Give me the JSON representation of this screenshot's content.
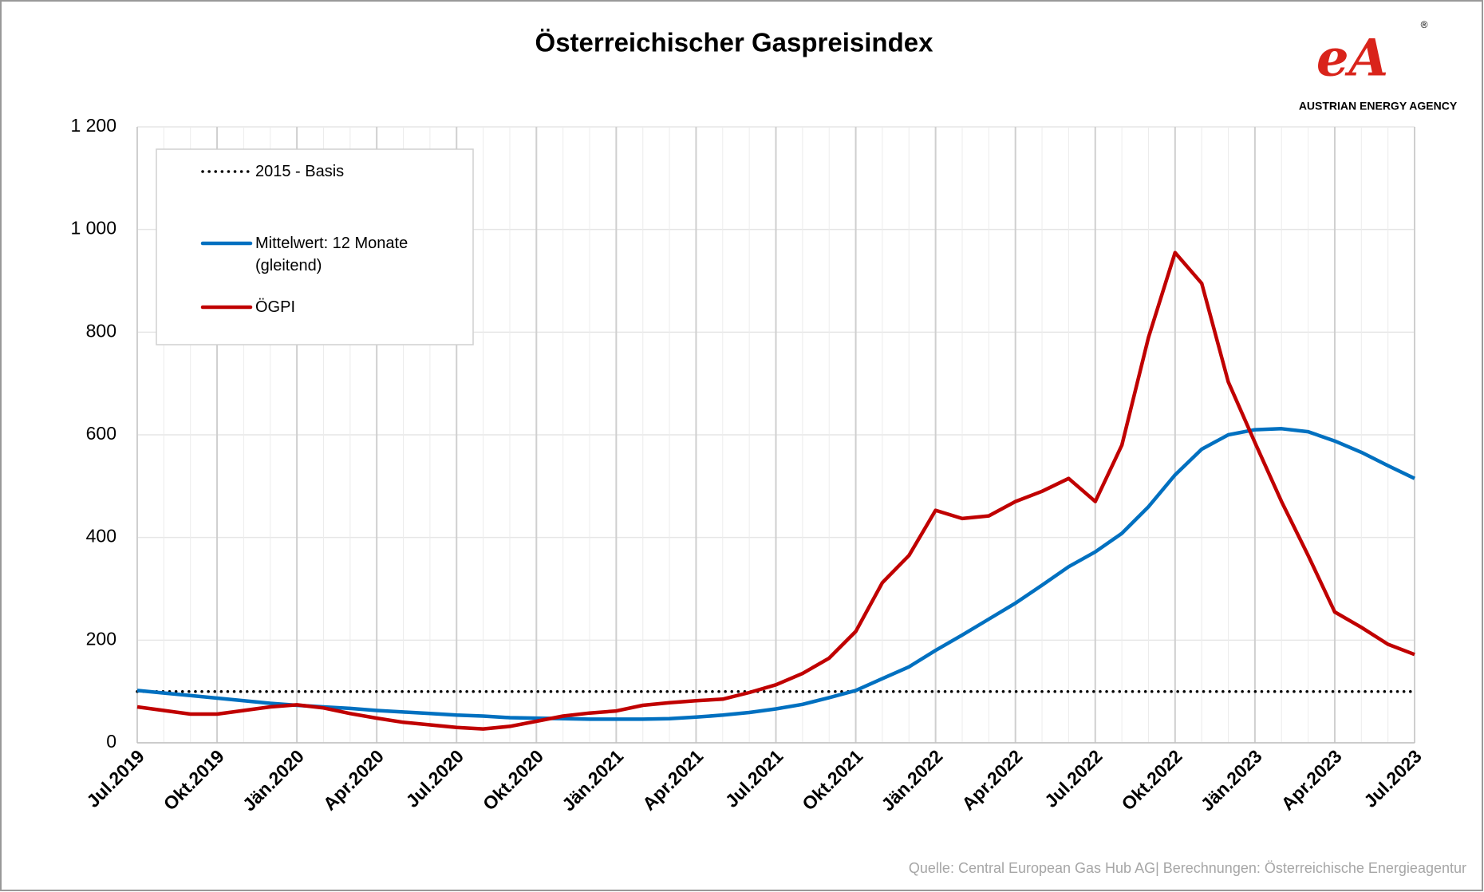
{
  "chart_data": {
    "type": "line",
    "title": "Österreichischer  Gaspreisindex",
    "logo": {
      "mark": "eA",
      "registered": "®",
      "name": "AUSTRIAN ENERGY AGENCY"
    },
    "source": "Quelle: Central European Gas Hub AG| Berechnungen: Österreichische Energieagentur",
    "categories": [
      "Jul.2019",
      null,
      null,
      "Okt.2019",
      null,
      null,
      "Jän.2020",
      null,
      null,
      "Apr.2020",
      null,
      null,
      "Jul.2020",
      null,
      null,
      "Okt.2020",
      null,
      null,
      "Jän.2021",
      null,
      null,
      "Apr.2021",
      null,
      null,
      "Jul.2021",
      null,
      null,
      "Okt.2021",
      null,
      null,
      "Jän.2022",
      null,
      null,
      "Apr.2022",
      null,
      null,
      "Jul.2022",
      null,
      null,
      "Okt.2022",
      null,
      null,
      "Jän.2023",
      null,
      null,
      "Apr.2023",
      null,
      null,
      "Jul.2023"
    ],
    "ylim": [
      0,
      1200
    ],
    "yticks": [
      0,
      200,
      400,
      600,
      800,
      {
        "value": 1000,
        "label": "1 000"
      },
      {
        "value": 1200,
        "label": "1 200"
      }
    ],
    "grid": true,
    "legend": "upper left",
    "series": [
      {
        "name": "2015 - Basis",
        "color": "#000000",
        "dash": "dotted",
        "values": [
          100,
          100,
          100,
          100,
          100,
          100,
          100,
          100,
          100,
          100,
          100,
          100,
          100,
          100,
          100,
          100,
          100,
          100,
          100,
          100,
          100,
          100,
          100,
          100,
          100,
          100,
          100,
          100,
          100,
          100,
          100,
          100,
          100,
          100,
          100,
          100,
          100,
          100,
          100,
          100,
          100,
          100,
          100,
          100,
          100,
          100,
          100,
          100,
          100
        ]
      },
      {
        "name": "Mittelwert: 12 Monate (gleitend)",
        "color": "#0070c0",
        "dash": "solid",
        "values": [
          102,
          97,
          92,
          87,
          82,
          77,
          73,
          70,
          67,
          63,
          60,
          57,
          54,
          52,
          49,
          48,
          47,
          46,
          46,
          46,
          47,
          50,
          54,
          59,
          66,
          75,
          88,
          102,
          125,
          148,
          180,
          210,
          241,
          272,
          307,
          343,
          372,
          408,
          460,
          522,
          572,
          600,
          610,
          612,
          606,
          588,
          566,
          540,
          515
        ]
      },
      {
        "name": "ÖGPI",
        "color": "#c00000",
        "dash": "solid",
        "values": [
          70,
          63,
          56,
          56,
          63,
          70,
          74,
          68,
          57,
          48,
          40,
          35,
          30,
          27,
          32,
          42,
          52,
          58,
          62,
          73,
          78,
          82,
          85,
          98,
          113,
          135,
          165,
          217,
          312,
          365,
          453,
          437,
          442,
          470,
          490,
          515,
          470,
          580,
          790,
          955,
          895,
          703,
          585,
          470,
          365,
          255,
          225,
          192,
          172
        ]
      }
    ]
  }
}
